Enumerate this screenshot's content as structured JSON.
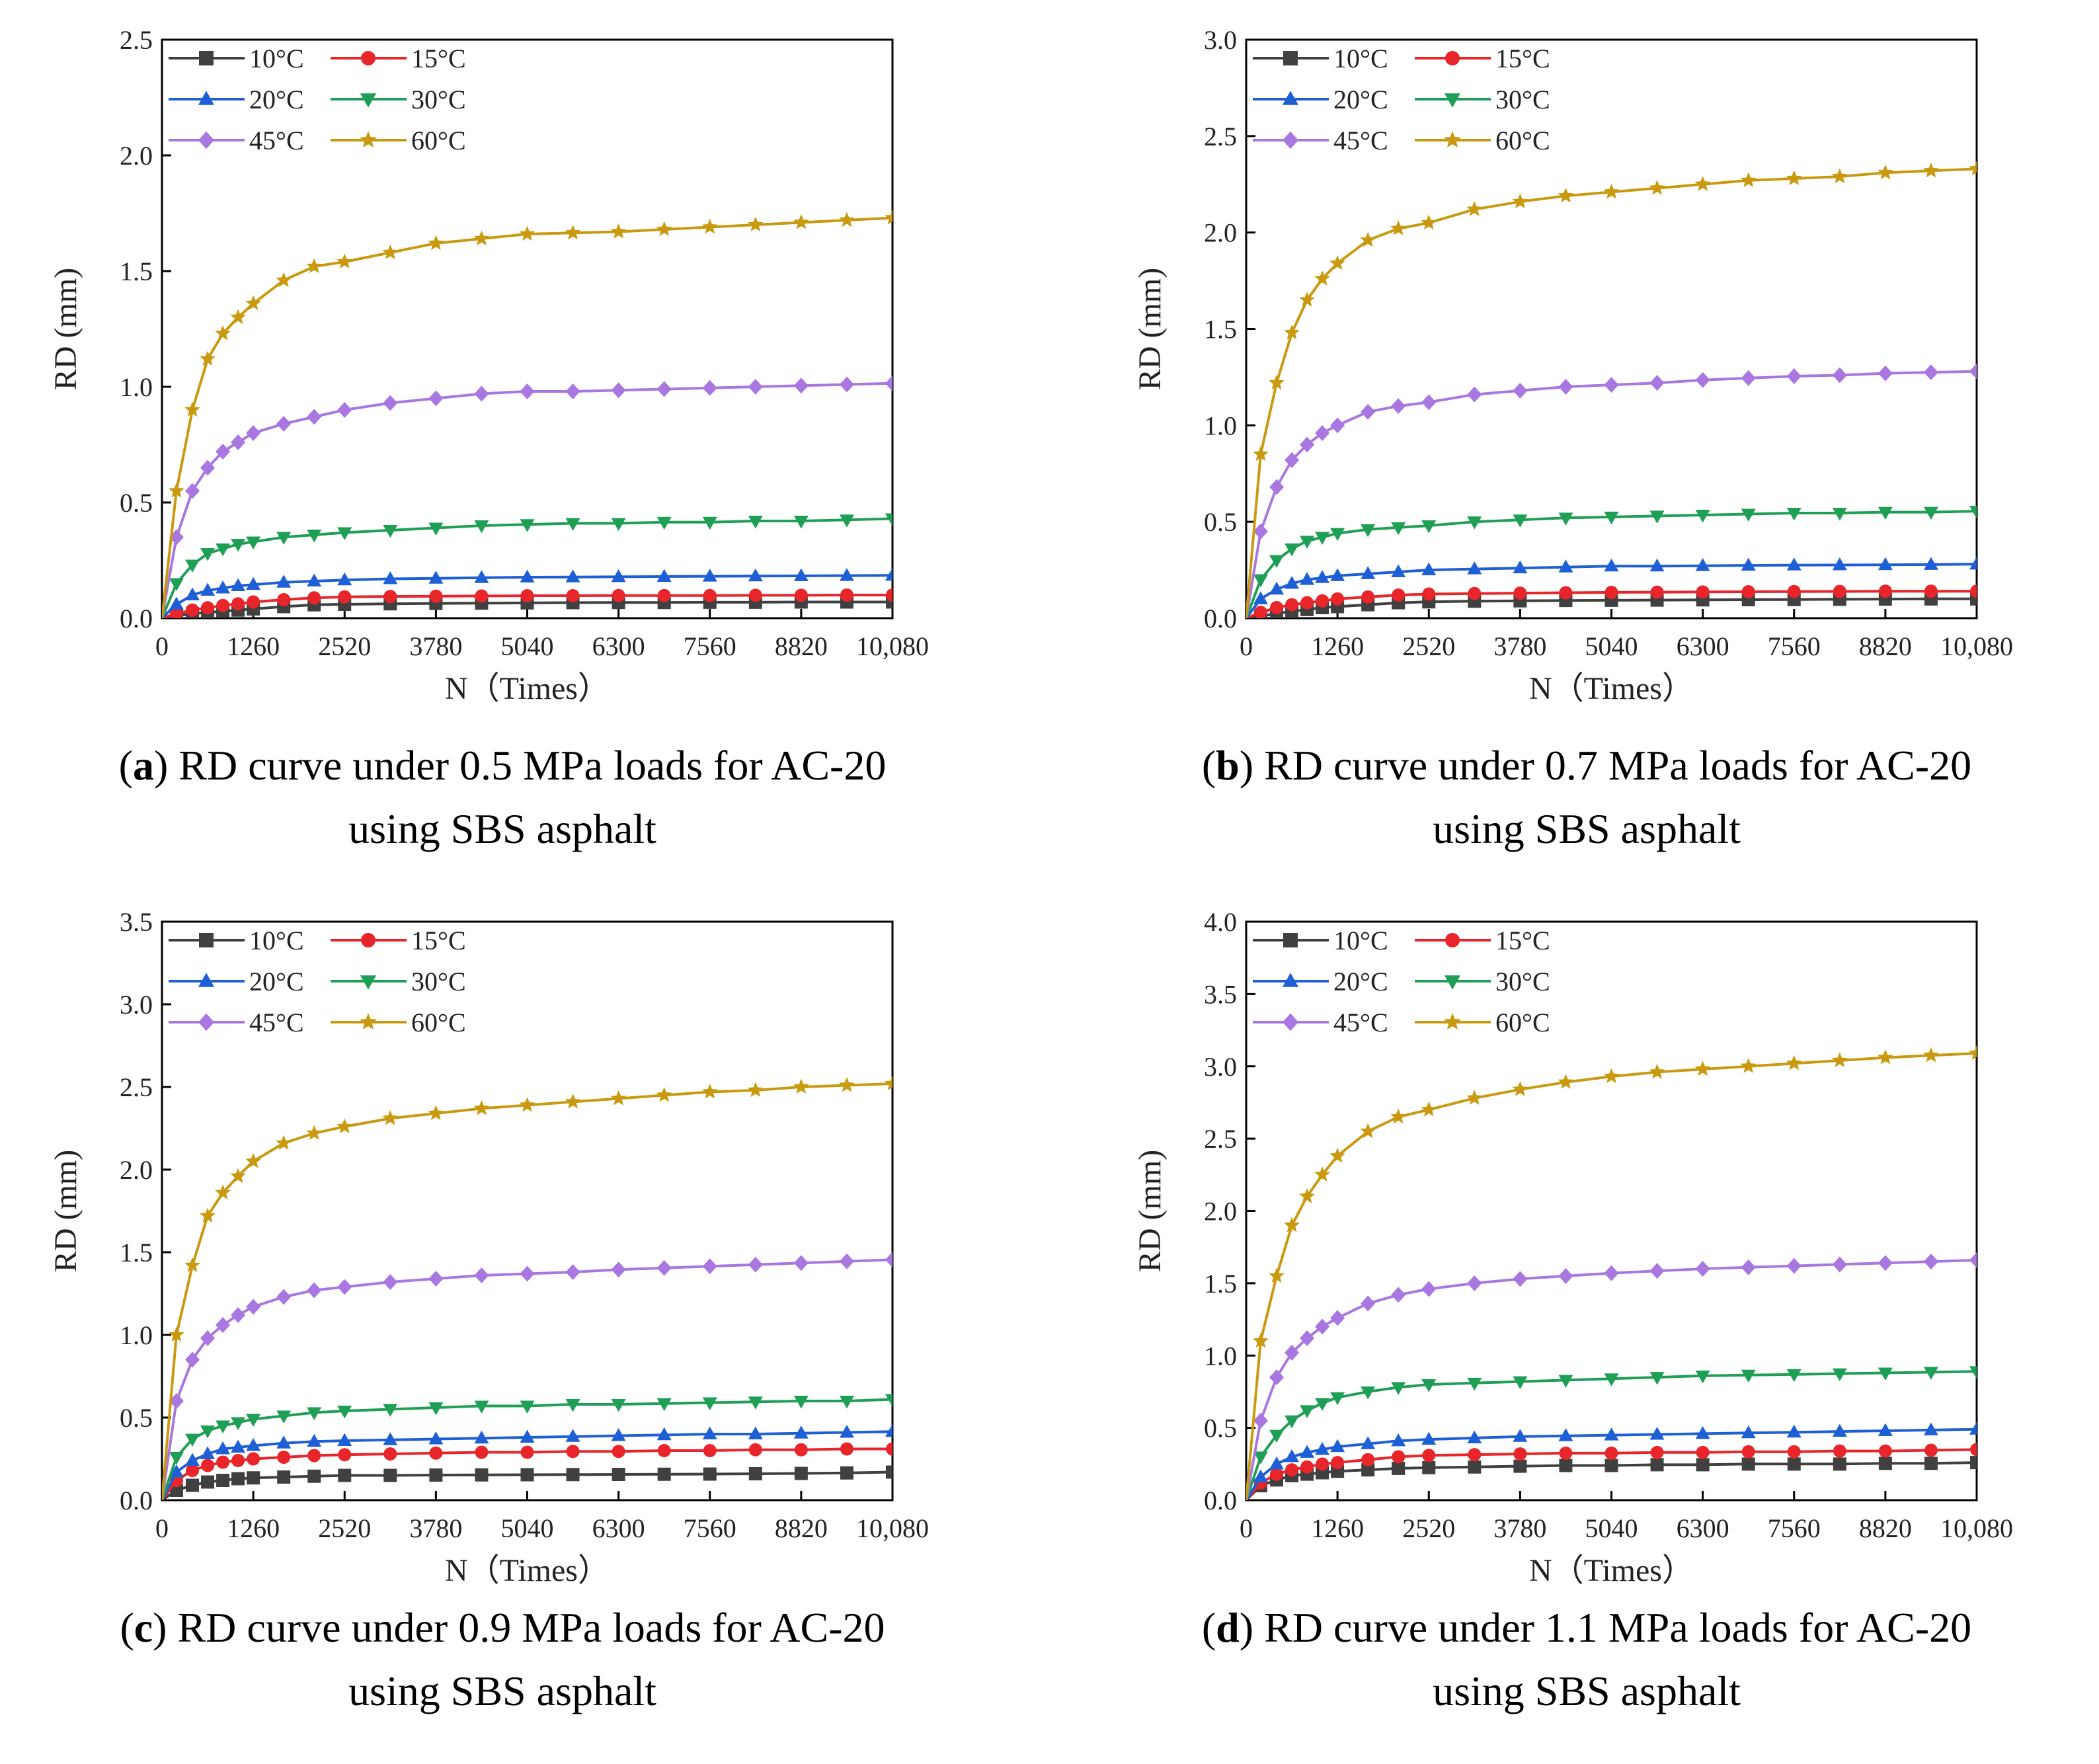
{
  "colors": {
    "10°C": "#404040",
    "15°C": "#e8252a",
    "20°C": "#1f5fd6",
    "30°C": "#1f9f55",
    "45°C": "#a877e0",
    "60°C": "#c99a10"
  },
  "legend_markers": {
    "10°C": "square",
    "15°C": "circle",
    "20°C": "triangle-up",
    "30°C": "triangle-down",
    "45°C": "diamond",
    "60°C": "star"
  },
  "panels": [
    {
      "letter": "a",
      "caption_line1": ") RD curve under 0.5 MPa loads for AC-20",
      "caption_line2": "using SBS asphalt"
    },
    {
      "letter": "b",
      "caption_line1": ") RD curve under 0.7 MPa loads for AC-20",
      "caption_line2": "using SBS asphalt"
    },
    {
      "letter": "c",
      "caption_line1": ") RD curve under 0.9 MPa loads for AC-20",
      "caption_line2": "using SBS asphalt"
    },
    {
      "letter": "d",
      "caption_line1": ") RD curve under 1.1 MPa loads for AC-20",
      "caption_line2": "using SBS asphalt"
    }
  ],
  "chart_data": [
    {
      "type": "line",
      "title": "",
      "xlabel": "N（Times）",
      "ylabel": "RD (mm)",
      "xlim": [
        0,
        10080
      ],
      "ylim": [
        0,
        2.5
      ],
      "xticks": [
        "0",
        "1260",
        "2520",
        "3780",
        "5040",
        "6300",
        "7560",
        "8820",
        "10,080"
      ],
      "yticks": [
        "0.0",
        "0.5",
        "1.0",
        "1.5",
        "2.0",
        "2.5"
      ],
      "legend_position": "top-left",
      "x": [
        0,
        200,
        420,
        630,
        840,
        1050,
        1260,
        1680,
        2100,
        2520,
        3150,
        3780,
        4410,
        5040,
        5670,
        6300,
        6930,
        7560,
        8190,
        8820,
        9450,
        10080
      ],
      "series": [
        {
          "name": "10°C",
          "values": [
            0,
            0.01,
            0.02,
            0.025,
            0.03,
            0.035,
            0.04,
            0.05,
            0.058,
            0.06,
            0.062,
            0.064,
            0.065,
            0.066,
            0.067,
            0.068,
            0.068,
            0.069,
            0.069,
            0.07,
            0.07,
            0.07
          ]
        },
        {
          "name": "15°C",
          "values": [
            0,
            0.02,
            0.035,
            0.045,
            0.055,
            0.062,
            0.07,
            0.08,
            0.088,
            0.092,
            0.094,
            0.095,
            0.096,
            0.097,
            0.097,
            0.098,
            0.098,
            0.098,
            0.099,
            0.099,
            0.1,
            0.1
          ]
        },
        {
          "name": "20°C",
          "values": [
            0,
            0.06,
            0.1,
            0.12,
            0.13,
            0.14,
            0.145,
            0.155,
            0.16,
            0.165,
            0.17,
            0.172,
            0.175,
            0.177,
            0.178,
            0.179,
            0.18,
            0.181,
            0.182,
            0.183,
            0.184,
            0.185
          ]
        },
        {
          "name": "30°C",
          "values": [
            0,
            0.15,
            0.23,
            0.28,
            0.3,
            0.32,
            0.33,
            0.35,
            0.36,
            0.37,
            0.38,
            0.39,
            0.4,
            0.405,
            0.41,
            0.41,
            0.415,
            0.415,
            0.42,
            0.42,
            0.425,
            0.43
          ]
        },
        {
          "name": "45°C",
          "values": [
            0,
            0.35,
            0.55,
            0.65,
            0.72,
            0.76,
            0.8,
            0.84,
            0.87,
            0.9,
            0.93,
            0.95,
            0.97,
            0.98,
            0.98,
            0.985,
            0.99,
            0.995,
            1.0,
            1.005,
            1.01,
            1.015
          ]
        },
        {
          "name": "60°C",
          "values": [
            0,
            0.55,
            0.9,
            1.12,
            1.23,
            1.3,
            1.36,
            1.46,
            1.52,
            1.54,
            1.58,
            1.62,
            1.64,
            1.66,
            1.665,
            1.67,
            1.68,
            1.69,
            1.7,
            1.71,
            1.72,
            1.73
          ]
        }
      ]
    },
    {
      "type": "line",
      "title": "",
      "xlabel": "N（Times）",
      "ylabel": "RD (mm)",
      "xlim": [
        0,
        10080
      ],
      "ylim": [
        0,
        3.0
      ],
      "xticks": [
        "0",
        "1260",
        "2520",
        "3780",
        "5040",
        "6300",
        "7560",
        "8820",
        "10,080"
      ],
      "yticks": [
        "0.0",
        "0.5",
        "1.0",
        "1.5",
        "2.0",
        "2.5",
        "3.0"
      ],
      "legend_position": "top-left",
      "x": [
        0,
        200,
        420,
        630,
        840,
        1050,
        1260,
        1680,
        2100,
        2520,
        3150,
        3780,
        4410,
        5040,
        5670,
        6300,
        6930,
        7560,
        8190,
        8820,
        9450,
        10080
      ],
      "series": [
        {
          "name": "10°C",
          "values": [
            0,
            0.01,
            0.025,
            0.035,
            0.045,
            0.055,
            0.06,
            0.07,
            0.08,
            0.085,
            0.088,
            0.09,
            0.092,
            0.093,
            0.094,
            0.095,
            0.096,
            0.097,
            0.098,
            0.099,
            0.1,
            0.1
          ]
        },
        {
          "name": "15°C",
          "values": [
            0,
            0.03,
            0.055,
            0.07,
            0.08,
            0.09,
            0.1,
            0.11,
            0.12,
            0.125,
            0.128,
            0.13,
            0.132,
            0.134,
            0.135,
            0.136,
            0.137,
            0.138,
            0.139,
            0.14,
            0.14,
            0.14
          ]
        },
        {
          "name": "20°C",
          "values": [
            0,
            0.1,
            0.15,
            0.18,
            0.2,
            0.21,
            0.22,
            0.23,
            0.24,
            0.25,
            0.255,
            0.26,
            0.265,
            0.27,
            0.27,
            0.272,
            0.274,
            0.275,
            0.276,
            0.277,
            0.278,
            0.28
          ]
        },
        {
          "name": "30°C",
          "values": [
            0,
            0.2,
            0.3,
            0.36,
            0.4,
            0.42,
            0.44,
            0.46,
            0.47,
            0.48,
            0.5,
            0.51,
            0.52,
            0.525,
            0.53,
            0.535,
            0.54,
            0.545,
            0.545,
            0.55,
            0.55,
            0.555
          ]
        },
        {
          "name": "45°C",
          "values": [
            0,
            0.45,
            0.68,
            0.82,
            0.9,
            0.96,
            1.0,
            1.07,
            1.1,
            1.12,
            1.16,
            1.18,
            1.2,
            1.21,
            1.22,
            1.235,
            1.245,
            1.255,
            1.26,
            1.27,
            1.275,
            1.28
          ]
        },
        {
          "name": "60°C",
          "values": [
            0,
            0.85,
            1.22,
            1.48,
            1.65,
            1.76,
            1.84,
            1.96,
            2.02,
            2.05,
            2.12,
            2.16,
            2.19,
            2.21,
            2.23,
            2.25,
            2.27,
            2.28,
            2.29,
            2.31,
            2.32,
            2.33
          ]
        }
      ]
    },
    {
      "type": "line",
      "title": "",
      "xlabel": "N（Times）",
      "ylabel": "RD (mm)",
      "xlim": [
        0,
        10080
      ],
      "ylim": [
        0,
        3.5
      ],
      "xticks": [
        "0",
        "1260",
        "2520",
        "3780",
        "5040",
        "6300",
        "7560",
        "8820",
        "10,080"
      ],
      "yticks": [
        "0.0",
        "0.5",
        "1.0",
        "1.5",
        "2.0",
        "2.5",
        "3.0",
        "3.5"
      ],
      "legend_position": "top-left",
      "x": [
        0,
        200,
        420,
        630,
        840,
        1050,
        1260,
        1680,
        2100,
        2520,
        3150,
        3780,
        4410,
        5040,
        5670,
        6300,
        6930,
        7560,
        8190,
        8820,
        9450,
        10080
      ],
      "series": [
        {
          "name": "10°C",
          "values": [
            0,
            0.06,
            0.09,
            0.11,
            0.12,
            0.13,
            0.135,
            0.14,
            0.145,
            0.15,
            0.15,
            0.152,
            0.153,
            0.154,
            0.155,
            0.156,
            0.157,
            0.158,
            0.16,
            0.162,
            0.165,
            0.17
          ]
        },
        {
          "name": "15°C",
          "values": [
            0,
            0.12,
            0.18,
            0.21,
            0.23,
            0.24,
            0.25,
            0.26,
            0.27,
            0.275,
            0.28,
            0.285,
            0.29,
            0.29,
            0.295,
            0.295,
            0.3,
            0.3,
            0.305,
            0.305,
            0.31,
            0.31
          ]
        },
        {
          "name": "20°C",
          "values": [
            0,
            0.17,
            0.24,
            0.28,
            0.31,
            0.32,
            0.33,
            0.345,
            0.355,
            0.36,
            0.365,
            0.37,
            0.375,
            0.38,
            0.385,
            0.39,
            0.395,
            0.4,
            0.4,
            0.405,
            0.41,
            0.415
          ]
        },
        {
          "name": "30°C",
          "values": [
            0,
            0.26,
            0.37,
            0.42,
            0.45,
            0.47,
            0.49,
            0.51,
            0.53,
            0.54,
            0.55,
            0.56,
            0.57,
            0.57,
            0.58,
            0.58,
            0.585,
            0.59,
            0.595,
            0.6,
            0.6,
            0.61
          ]
        },
        {
          "name": "45°C",
          "values": [
            0,
            0.6,
            0.85,
            0.98,
            1.06,
            1.12,
            1.17,
            1.23,
            1.27,
            1.29,
            1.32,
            1.34,
            1.36,
            1.37,
            1.38,
            1.395,
            1.405,
            1.415,
            1.425,
            1.435,
            1.445,
            1.455
          ]
        },
        {
          "name": "60°C",
          "values": [
            0,
            1.0,
            1.42,
            1.72,
            1.86,
            1.96,
            2.05,
            2.16,
            2.22,
            2.26,
            2.31,
            2.34,
            2.37,
            2.39,
            2.41,
            2.43,
            2.45,
            2.47,
            2.48,
            2.5,
            2.51,
            2.52
          ]
        }
      ]
    },
    {
      "type": "line",
      "title": "",
      "xlabel": "N（Times）",
      "ylabel": "RD (mm)",
      "xlim": [
        0,
        10080
      ],
      "ylim": [
        0,
        4.0
      ],
      "xticks": [
        "0",
        "1260",
        "2520",
        "3780",
        "5040",
        "6300",
        "7560",
        "8820",
        "10,080"
      ],
      "yticks": [
        "0.0",
        "0.5",
        "1.0",
        "1.5",
        "2.0",
        "2.5",
        "3.0",
        "3.5",
        "4.0"
      ],
      "legend_position": "top-left",
      "x": [
        0,
        200,
        420,
        630,
        840,
        1050,
        1260,
        1680,
        2100,
        2520,
        3150,
        3780,
        4410,
        5040,
        5670,
        6300,
        6930,
        7560,
        8190,
        8820,
        9450,
        10080
      ],
      "series": [
        {
          "name": "10°C",
          "values": [
            0,
            0.1,
            0.14,
            0.17,
            0.18,
            0.19,
            0.2,
            0.21,
            0.22,
            0.225,
            0.23,
            0.235,
            0.24,
            0.24,
            0.245,
            0.245,
            0.25,
            0.25,
            0.25,
            0.255,
            0.255,
            0.26
          ]
        },
        {
          "name": "15°C",
          "values": [
            0,
            0.12,
            0.18,
            0.21,
            0.23,
            0.25,
            0.26,
            0.28,
            0.3,
            0.31,
            0.315,
            0.32,
            0.325,
            0.325,
            0.33,
            0.33,
            0.335,
            0.335,
            0.34,
            0.34,
            0.345,
            0.35
          ]
        },
        {
          "name": "20°C",
          "values": [
            0,
            0.16,
            0.25,
            0.3,
            0.33,
            0.35,
            0.37,
            0.39,
            0.41,
            0.42,
            0.43,
            0.44,
            0.445,
            0.45,
            0.455,
            0.46,
            0.465,
            0.47,
            0.475,
            0.48,
            0.485,
            0.49
          ]
        },
        {
          "name": "30°C",
          "values": [
            0,
            0.3,
            0.45,
            0.55,
            0.62,
            0.67,
            0.71,
            0.75,
            0.78,
            0.8,
            0.81,
            0.82,
            0.83,
            0.84,
            0.85,
            0.86,
            0.865,
            0.87,
            0.875,
            0.88,
            0.885,
            0.89
          ]
        },
        {
          "name": "45°C",
          "values": [
            0,
            0.55,
            0.85,
            1.02,
            1.12,
            1.2,
            1.26,
            1.36,
            1.42,
            1.46,
            1.5,
            1.53,
            1.55,
            1.57,
            1.585,
            1.6,
            1.61,
            1.62,
            1.63,
            1.64,
            1.65,
            1.66
          ]
        },
        {
          "name": "60°C",
          "values": [
            0,
            1.1,
            1.55,
            1.9,
            2.1,
            2.25,
            2.38,
            2.55,
            2.65,
            2.7,
            2.78,
            2.84,
            2.89,
            2.93,
            2.96,
            2.98,
            3.0,
            3.02,
            3.04,
            3.06,
            3.075,
            3.09
          ]
        }
      ]
    }
  ]
}
